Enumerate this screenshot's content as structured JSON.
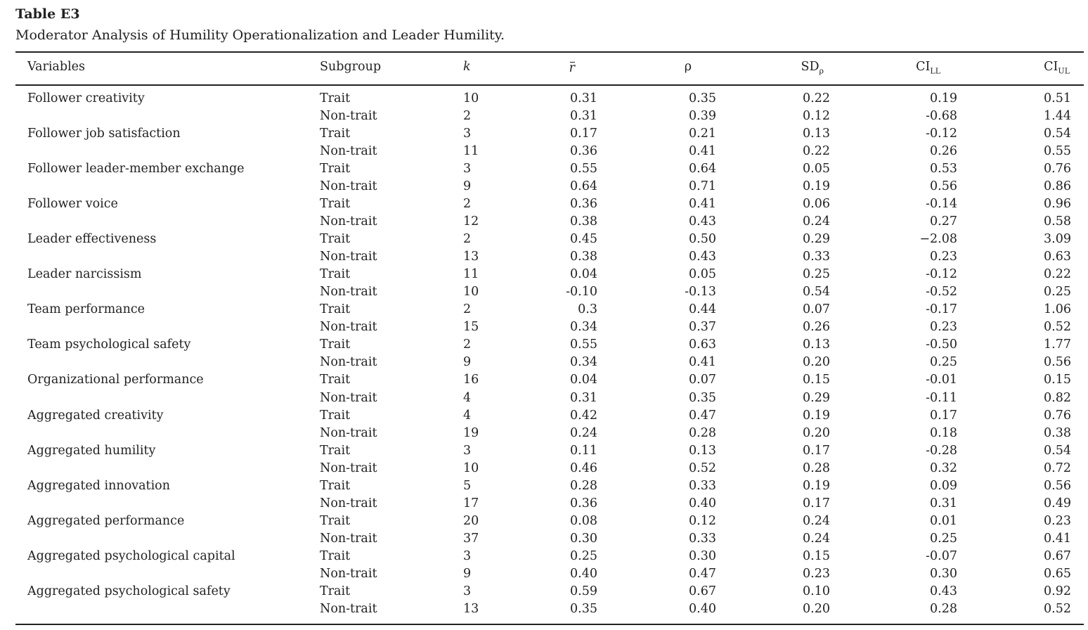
{
  "caption": {
    "label": "Table E3",
    "title": "Moderator Analysis of Humility Operationalization and Leader Humility."
  },
  "headers": {
    "variables": "Variables",
    "subgroup": "Subgroup",
    "k": "k",
    "r": "r",
    "rho": "ρ",
    "sd": "SD",
    "sd_sub": "ρ",
    "ci": "CI",
    "ll_sub": "LL",
    "ul_sub": "UL"
  },
  "rows": [
    {
      "variable": "Follower creativity",
      "subgroup": "Trait",
      "k": "10",
      "r": "0.31",
      "rho": "0.35",
      "sd": "0.22",
      "ll": "0.19",
      "ul": "0.51"
    },
    {
      "variable": "",
      "subgroup": "Non-trait",
      "k": "2",
      "r": "0.31",
      "rho": "0.39",
      "sd": "0.12",
      "ll": "-0.68",
      "ul": "1.44"
    },
    {
      "variable": "Follower job satisfaction",
      "subgroup": "Trait",
      "k": "3",
      "r": "0.17",
      "rho": "0.21",
      "sd": "0.13",
      "ll": "-0.12",
      "ul": "0.54"
    },
    {
      "variable": "",
      "subgroup": "Non-trait",
      "k": "11",
      "r": "0.36",
      "rho": "0.41",
      "sd": "0.22",
      "ll": "0.26",
      "ul": "0.55"
    },
    {
      "variable": "Follower leader-member exchange",
      "subgroup": "Trait",
      "k": "3",
      "r": "0.55",
      "rho": "0.64",
      "sd": "0.05",
      "ll": "0.53",
      "ul": "0.76"
    },
    {
      "variable": "",
      "subgroup": "Non-trait",
      "k": "9",
      "r": "0.64",
      "rho": "0.71",
      "sd": "0.19",
      "ll": "0.56",
      "ul": "0.86"
    },
    {
      "variable": "Follower voice",
      "subgroup": "Trait",
      "k": "2",
      "r": "0.36",
      "rho": "0.41",
      "sd": "0.06",
      "ll": "-0.14",
      "ul": "0.96"
    },
    {
      "variable": "",
      "subgroup": "Non-trait",
      "k": "12",
      "r": "0.38",
      "rho": "0.43",
      "sd": "0.24",
      "ll": "0.27",
      "ul": "0.58"
    },
    {
      "variable": "Leader effectiveness",
      "subgroup": "Trait",
      "k": "2",
      "r": "0.45",
      "rho": "0.50",
      "sd": "0.29",
      "ll": "−2.08",
      "ul": "3.09"
    },
    {
      "variable": "",
      "subgroup": "Non-trait",
      "k": "13",
      "r": "0.38",
      "rho": "0.43",
      "sd": "0.33",
      "ll": "0.23",
      "ul": "0.63"
    },
    {
      "variable": "Leader narcissism",
      "subgroup": "Trait",
      "k": "11",
      "r": "0.04",
      "rho": "0.05",
      "sd": "0.25",
      "ll": "-0.12",
      "ul": "0.22"
    },
    {
      "variable": "",
      "subgroup": "Non-trait",
      "k": "10",
      "r": "-0.10",
      "rho": "-0.13",
      "sd": "0.54",
      "ll": "-0.52",
      "ul": "0.25"
    },
    {
      "variable": "Team performance",
      "subgroup": "Trait",
      "k": "2",
      "r": "0.3",
      "rho": "0.44",
      "sd": "0.07",
      "ll": "-0.17",
      "ul": "1.06"
    },
    {
      "variable": "",
      "subgroup": "Non-trait",
      "k": "15",
      "r": "0.34",
      "rho": "0.37",
      "sd": "0.26",
      "ll": "0.23",
      "ul": "0.52"
    },
    {
      "variable": "Team psychological safety",
      "subgroup": "Trait",
      "k": "2",
      "r": "0.55",
      "rho": "0.63",
      "sd": "0.13",
      "ll": "-0.50",
      "ul": "1.77"
    },
    {
      "variable": "",
      "subgroup": "Non-trait",
      "k": "9",
      "r": "0.34",
      "rho": "0.41",
      "sd": "0.20",
      "ll": "0.25",
      "ul": "0.56"
    },
    {
      "variable": "Organizational performance",
      "subgroup": "Trait",
      "k": "16",
      "r": "0.04",
      "rho": "0.07",
      "sd": "0.15",
      "ll": "-0.01",
      "ul": "0.15"
    },
    {
      "variable": "",
      "subgroup": "Non-trait",
      "k": "4",
      "r": "0.31",
      "rho": "0.35",
      "sd": "0.29",
      "ll": "-0.11",
      "ul": "0.82"
    },
    {
      "variable": "Aggregated creativity",
      "subgroup": "Trait",
      "k": "4",
      "r": "0.42",
      "rho": "0.47",
      "sd": "0.19",
      "ll": "0.17",
      "ul": "0.76"
    },
    {
      "variable": "",
      "subgroup": "Non-trait",
      "k": "19",
      "r": "0.24",
      "rho": "0.28",
      "sd": "0.20",
      "ll": "0.18",
      "ul": "0.38"
    },
    {
      "variable": "Aggregated humility",
      "subgroup": "Trait",
      "k": "3",
      "r": "0.11",
      "rho": "0.13",
      "sd": "0.17",
      "ll": "-0.28",
      "ul": "0.54"
    },
    {
      "variable": "",
      "subgroup": "Non-trait",
      "k": "10",
      "r": "0.46",
      "rho": "0.52",
      "sd": "0.28",
      "ll": "0.32",
      "ul": "0.72"
    },
    {
      "variable": "Aggregated innovation",
      "subgroup": "Trait",
      "k": "5",
      "r": "0.28",
      "rho": "0.33",
      "sd": "0.19",
      "ll": "0.09",
      "ul": "0.56"
    },
    {
      "variable": "",
      "subgroup": "Non-trait",
      "k": "17",
      "r": "0.36",
      "rho": "0.40",
      "sd": "0.17",
      "ll": "0.31",
      "ul": "0.49"
    },
    {
      "variable": "Aggregated performance",
      "subgroup": "Trait",
      "k": "20",
      "r": "0.08",
      "rho": "0.12",
      "sd": "0.24",
      "ll": "0.01",
      "ul": "0.23"
    },
    {
      "variable": "",
      "subgroup": "Non-trait",
      "k": "37",
      "r": "0.30",
      "rho": "0.33",
      "sd": "0.24",
      "ll": "0.25",
      "ul": "0.41"
    },
    {
      "variable": "Aggregated psychological capital",
      "subgroup": "Trait",
      "k": "3",
      "r": "0.25",
      "rho": "0.30",
      "sd": "0.15",
      "ll": "-0.07",
      "ul": "0.67"
    },
    {
      "variable": "",
      "subgroup": "Non-trait",
      "k": "9",
      "r": "0.40",
      "rho": "0.47",
      "sd": "0.23",
      "ll": "0.30",
      "ul": "0.65"
    },
    {
      "variable": "Aggregated psychological safety",
      "subgroup": "Trait",
      "k": "3",
      "r": "0.59",
      "rho": "0.67",
      "sd": "0.10",
      "ll": "0.43",
      "ul": "0.92"
    },
    {
      "variable": "",
      "subgroup": "Non-trait",
      "k": "13",
      "r": "0.35",
      "rho": "0.40",
      "sd": "0.20",
      "ll": "0.28",
      "ul": "0.52"
    }
  ]
}
